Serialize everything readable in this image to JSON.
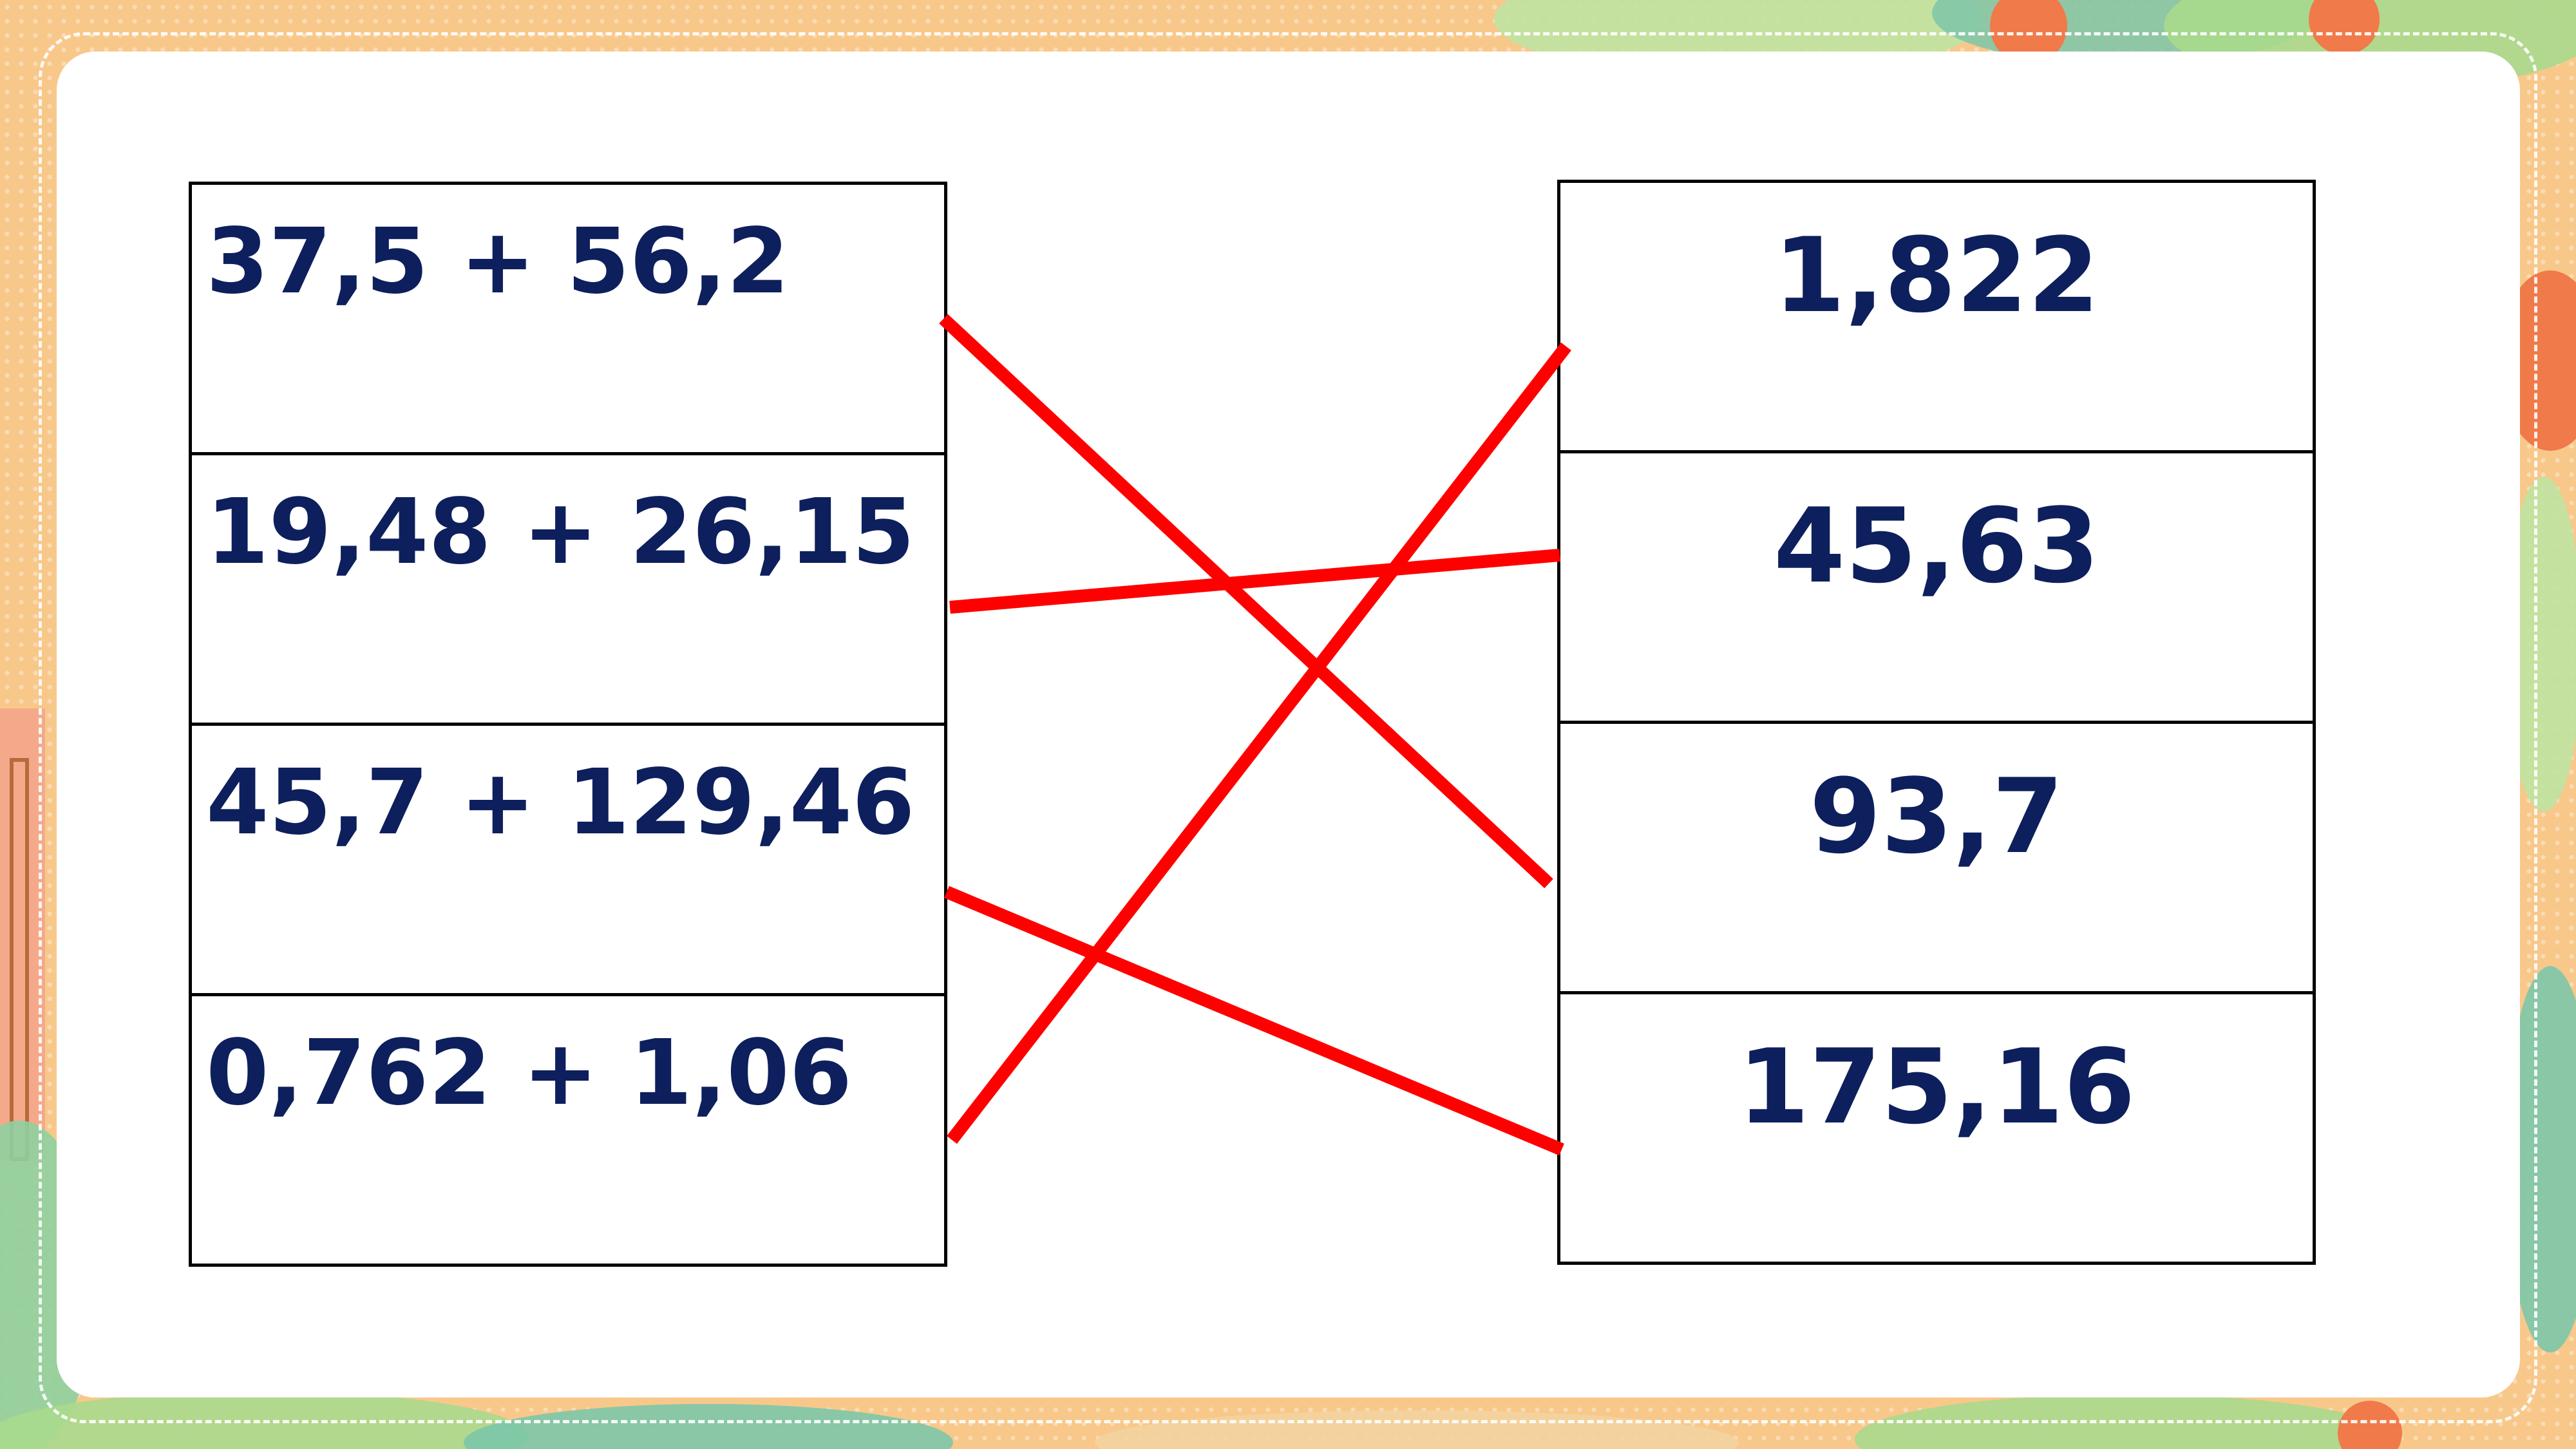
{
  "exercise": {
    "expressions": [
      "37,5 + 56,2",
      "19,48 + 26,15",
      "45,7 + 129,46",
      "0,762 + 1,06"
    ],
    "results": [
      "1,822",
      "45,63",
      "93,7",
      "175,16"
    ],
    "matches": [
      [
        0,
        2
      ],
      [
        1,
        1
      ],
      [
        2,
        3
      ],
      [
        3,
        0
      ]
    ],
    "line_color": "#ff0000",
    "text_color": "#0d1f5c"
  }
}
